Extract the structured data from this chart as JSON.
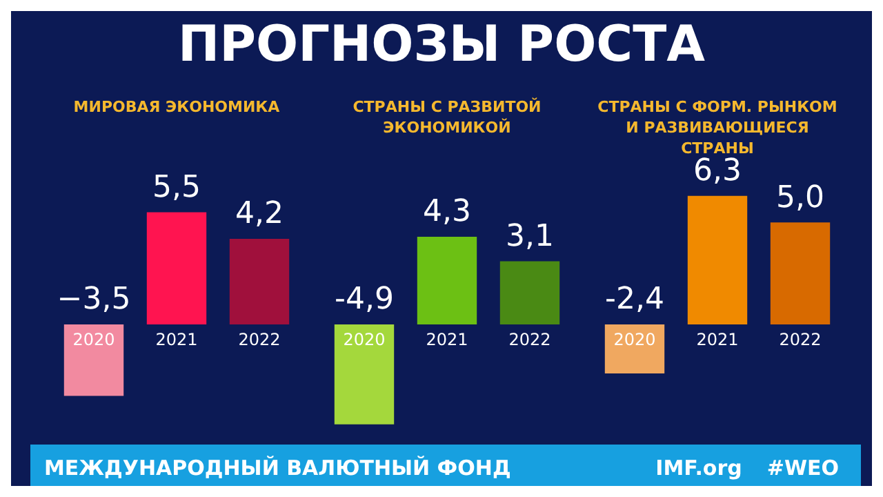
{
  "chart_data": [
    {
      "type": "other",
      "title": "ПРОГНОЗЫ РОСТА",
      "annotations": [
        "МЕЖДУНАРОДНЫЙ ВАЛЮТНЫЙ ФОНД",
        "IMF.org",
        "#WEO"
      ]
    },
    {
      "type": "bar",
      "title": "МИРОВАЯ ЭКОНОМИКА",
      "categories": [
        "2020",
        "2021",
        "2022"
      ],
      "values": [
        -3.5,
        5.5,
        4.2
      ],
      "value_labels": [
        "−3,5",
        "5,5",
        "4,2"
      ],
      "colors": [
        "#f28aa0",
        "#ff1450",
        "#a0103c"
      ]
    },
    {
      "type": "bar",
      "title": "СТРАНЫ С РАЗВИТОЙ ЭКОНОМИКОЙ",
      "categories": [
        "2020",
        "2021",
        "2022"
      ],
      "values": [
        -4.9,
        4.3,
        3.1
      ],
      "value_labels": [
        "-4,9",
        "4,3",
        "3,1"
      ],
      "colors": [
        "#a4d83c",
        "#6cc014",
        "#4a8a14"
      ]
    },
    {
      "type": "bar",
      "title": "СТРАНЫ С ФОРМ. РЫНКОМ И РАЗВИВАЮЩИЕСЯ СТРАНЫ",
      "categories": [
        "2020",
        "2021",
        "2022"
      ],
      "values": [
        -2.4,
        6.3,
        5.0
      ],
      "value_labels": [
        "-2,4",
        "6,3",
        "5,0"
      ],
      "colors": [
        "#f0a860",
        "#f08a00",
        "#d86a00"
      ]
    }
  ]
}
